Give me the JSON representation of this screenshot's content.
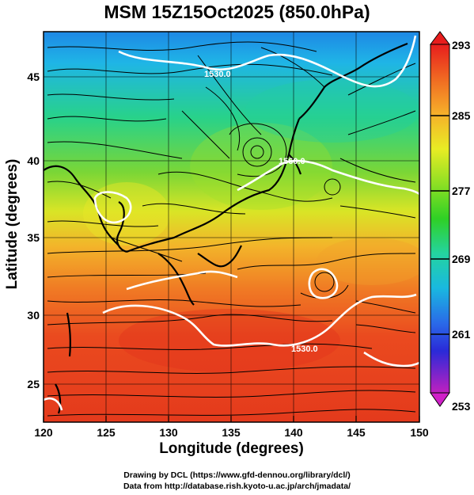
{
  "title": "MSM 15Z15Oct2025 (850.0hPa)",
  "x_axis": {
    "label": "Longitude (degrees)",
    "ticks": [
      "120",
      "125",
      "130",
      "135",
      "140",
      "145",
      "150"
    ]
  },
  "y_axis": {
    "label": "Latitude  (degrees)",
    "ticks": [
      "25",
      "30",
      "35",
      "40",
      "45"
    ]
  },
  "colorbar": {
    "labels": [
      "293",
      "285",
      "277",
      "269",
      "261",
      "253"
    ],
    "colors": [
      "#e0306e",
      "#8a1ab8",
      "#2a2ad8",
      "#1f7fe8",
      "#19c8d8",
      "#24d47a",
      "#2fd025",
      "#a8e020",
      "#f2ef24",
      "#f6b02a",
      "#f06a22",
      "#e81d1d"
    ]
  },
  "contour_labels": [
    "1530.0",
    "1560.0",
    "1530.0"
  ],
  "credits": [
    "Drawing by DCL (https://www.gfd-dennou.org/library/dcl/)",
    "Data from http://database.rish.kyoto-u.ac.jp/arch/jmadata/"
  ]
}
